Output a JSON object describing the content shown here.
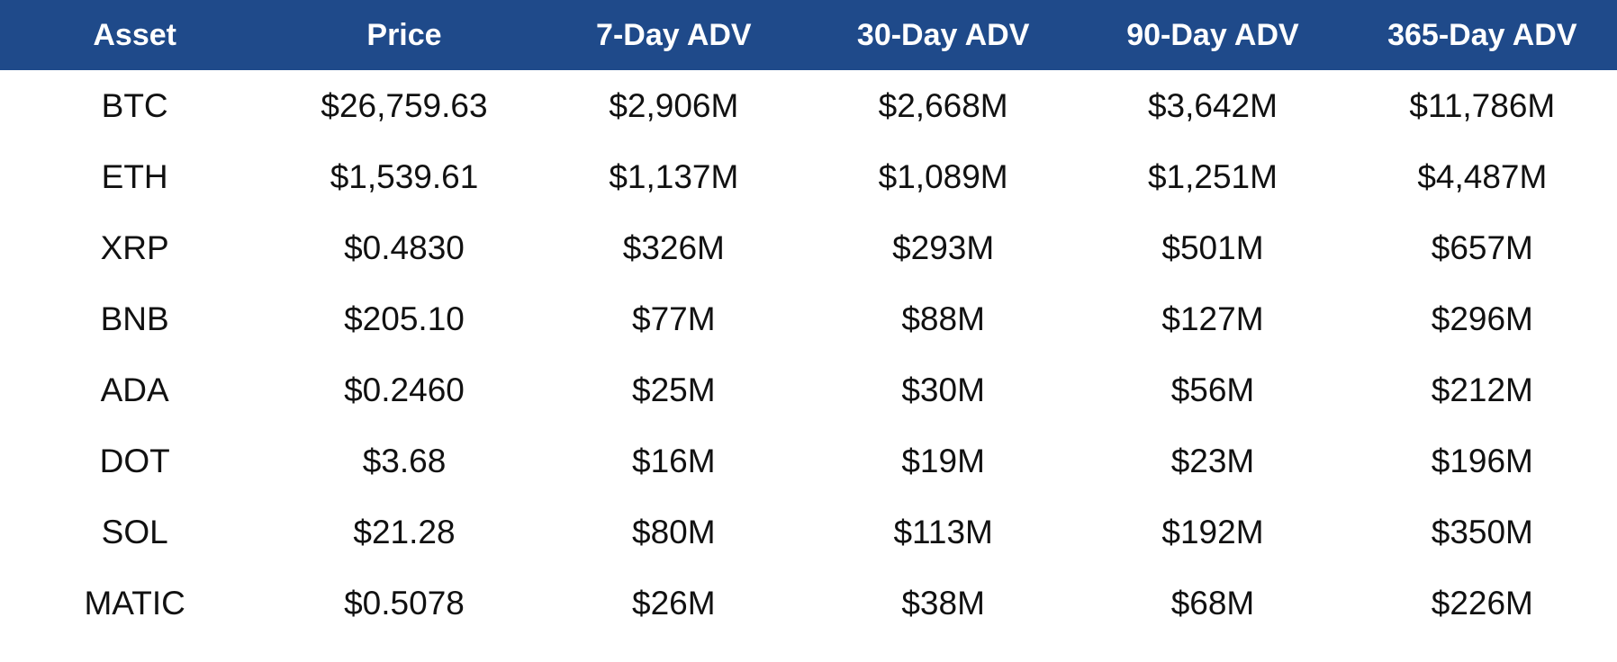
{
  "table": {
    "header": [
      "Asset",
      "Price",
      "7-Day ADV",
      "30-Day ADV",
      "90-Day ADV",
      "365-Day ADV"
    ],
    "rows": [
      [
        "BTC",
        "$26,759.63",
        "$2,906M",
        "$2,668M",
        "$3,642M",
        "$11,786M"
      ],
      [
        "ETH",
        "$1,539.61",
        "$1,137M",
        "$1,089M",
        "$1,251M",
        "$4,487M"
      ],
      [
        "XRP",
        "$0.4830",
        "$326M",
        "$293M",
        "$501M",
        "$657M"
      ],
      [
        "BNB",
        "$205.10",
        "$77M",
        "$88M",
        "$127M",
        "$296M"
      ],
      [
        "ADA",
        "$0.2460",
        "$25M",
        "$30M",
        "$56M",
        "$212M"
      ],
      [
        "DOT",
        "$3.68",
        "$16M",
        "$19M",
        "$23M",
        "$196M"
      ],
      [
        "SOL",
        "$21.28",
        "$80M",
        "$113M",
        "$192M",
        "$350M"
      ],
      [
        "MATIC",
        "$0.5078",
        "$26M",
        "$38M",
        "$68M",
        "$226M"
      ]
    ]
  }
}
